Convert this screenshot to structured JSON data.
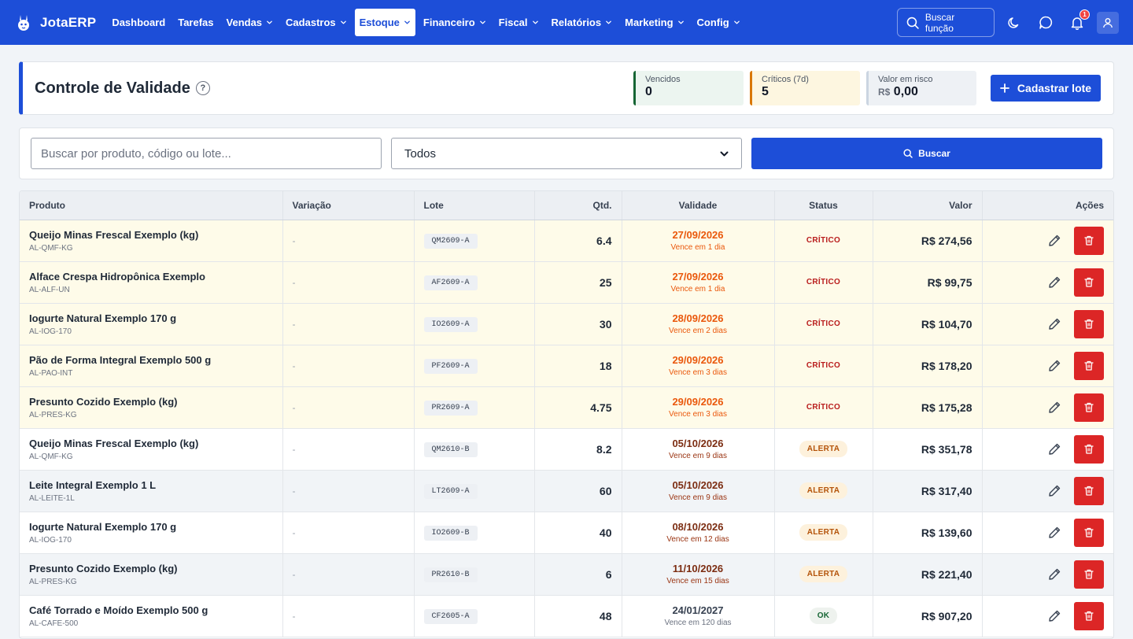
{
  "app": {
    "name": "JotaERP"
  },
  "nav": {
    "items": [
      {
        "label": "Dashboard",
        "dropdown": false,
        "active": false
      },
      {
        "label": "Tarefas",
        "dropdown": false,
        "active": false
      },
      {
        "label": "Vendas",
        "dropdown": true,
        "active": false
      },
      {
        "label": "Cadastros",
        "dropdown": true,
        "active": false
      },
      {
        "label": "Estoque",
        "dropdown": true,
        "active": true
      },
      {
        "label": "Financeiro",
        "dropdown": true,
        "active": false
      },
      {
        "label": "Fiscal",
        "dropdown": true,
        "active": false
      },
      {
        "label": "Relatórios",
        "dropdown": true,
        "active": false
      },
      {
        "label": "Marketing",
        "dropdown": true,
        "active": false
      },
      {
        "label": "Config",
        "dropdown": true,
        "active": false
      }
    ],
    "search_label": "Buscar função",
    "notification_count": "1"
  },
  "header": {
    "title": "Controle de Validade",
    "help": "?",
    "kpis": {
      "vencidos": {
        "label": "Vencidos",
        "value": "0"
      },
      "criticos": {
        "label": "Críticos (7d)",
        "value": "5"
      },
      "risco": {
        "label": "Valor em risco",
        "currency": "R$",
        "value": "0,00"
      }
    },
    "add_button": "Cadastrar lote"
  },
  "filters": {
    "search_placeholder": "Buscar por produto, código ou lote...",
    "search_value": "",
    "status_selected": "Todos",
    "search_button": "Buscar"
  },
  "table": {
    "columns": {
      "produto": "Produto",
      "variacao": "Variação",
      "lote": "Lote",
      "qtd": "Qtd.",
      "validade": "Validade",
      "status": "Status",
      "valor": "Valor",
      "acoes": "Ações"
    },
    "rows": [
      {
        "produto": "Queijo Minas Frescal Exemplo (kg)",
        "codigo": "AL-QMF-KG",
        "variacao": "-",
        "lote": "QM2609-A",
        "qtd": "6.4",
        "validade": "27/09/2026",
        "vence": "Vence em 1 dia",
        "status": "CRÍTICO",
        "level": "crit",
        "valor": "R$ 274,56"
      },
      {
        "produto": "Alface Crespa Hidropônica Exemplo",
        "codigo": "AL-ALF-UN",
        "variacao": "-",
        "lote": "AF2609-A",
        "qtd": "25",
        "validade": "27/09/2026",
        "vence": "Vence em 1 dia",
        "status": "CRÍTICO",
        "level": "crit",
        "valor": "R$ 99,75"
      },
      {
        "produto": "Iogurte Natural Exemplo 170 g",
        "codigo": "AL-IOG-170",
        "variacao": "-",
        "lote": "IO2609-A",
        "qtd": "30",
        "validade": "28/09/2026",
        "vence": "Vence em 2 dias",
        "status": "CRÍTICO",
        "level": "crit",
        "valor": "R$ 104,70"
      },
      {
        "produto": "Pão de Forma Integral Exemplo 500 g",
        "codigo": "AL-PAO-INT",
        "variacao": "-",
        "lote": "PF2609-A",
        "qtd": "18",
        "validade": "29/09/2026",
        "vence": "Vence em 3 dias",
        "status": "CRÍTICO",
        "level": "crit",
        "valor": "R$ 178,20"
      },
      {
        "produto": "Presunto Cozido Exemplo (kg)",
        "codigo": "AL-PRES-KG",
        "variacao": "-",
        "lote": "PR2609-A",
        "qtd": "4.75",
        "validade": "29/09/2026",
        "vence": "Vence em 3 dias",
        "status": "CRÍTICO",
        "level": "crit",
        "valor": "R$ 175,28"
      },
      {
        "produto": "Queijo Minas Frescal Exemplo (kg)",
        "codigo": "AL-QMF-KG",
        "variacao": "-",
        "lote": "QM2610-B",
        "qtd": "8.2",
        "validade": "05/10/2026",
        "vence": "Vence em 9 dias",
        "status": "ALERTA",
        "level": "alert",
        "valor": "R$ 351,78"
      },
      {
        "produto": "Leite Integral Exemplo 1 L",
        "codigo": "AL-LEITE-1L",
        "variacao": "-",
        "lote": "LT2609-A",
        "qtd": "60",
        "validade": "05/10/2026",
        "vence": "Vence em 9 dias",
        "status": "ALERTA",
        "level": "alert",
        "valor": "R$ 317,40"
      },
      {
        "produto": "Iogurte Natural Exemplo 170 g",
        "codigo": "AL-IOG-170",
        "variacao": "-",
        "lote": "IO2609-B",
        "qtd": "40",
        "validade": "08/10/2026",
        "vence": "Vence em 12 dias",
        "status": "ALERTA",
        "level": "alert",
        "valor": "R$ 139,60"
      },
      {
        "produto": "Presunto Cozido Exemplo (kg)",
        "codigo": "AL-PRES-KG",
        "variacao": "-",
        "lote": "PR2610-B",
        "qtd": "6",
        "validade": "11/10/2026",
        "vence": "Vence em 15 dias",
        "status": "ALERTA",
        "level": "alert",
        "valor": "R$ 221,40"
      },
      {
        "produto": "Café Torrado e Moído Exemplo 500 g",
        "codigo": "AL-CAFE-500",
        "variacao": "-",
        "lote": "CF2605-A",
        "qtd": "48",
        "validade": "24/01/2027",
        "vence": "Vence em 120 dias",
        "status": "OK",
        "level": "ok",
        "valor": "R$ 907,20"
      }
    ]
  },
  "colors": {
    "primary": "#1d4ed8",
    "critical_row": "#fefbe9",
    "critical_text": "#ea580c",
    "danger": "#dc2626"
  },
  "icons": {
    "logo": "rabbit-logo-icon",
    "search": "search-icon",
    "theme": "moon-icon",
    "chat": "chat-bubble-icon",
    "notifications": "bell-icon",
    "user": "user-icon",
    "help": "question-mark-icon",
    "add": "plus-icon",
    "edit": "pencil-icon",
    "delete": "trash-icon",
    "dropdown": "chevron-down-icon"
  }
}
